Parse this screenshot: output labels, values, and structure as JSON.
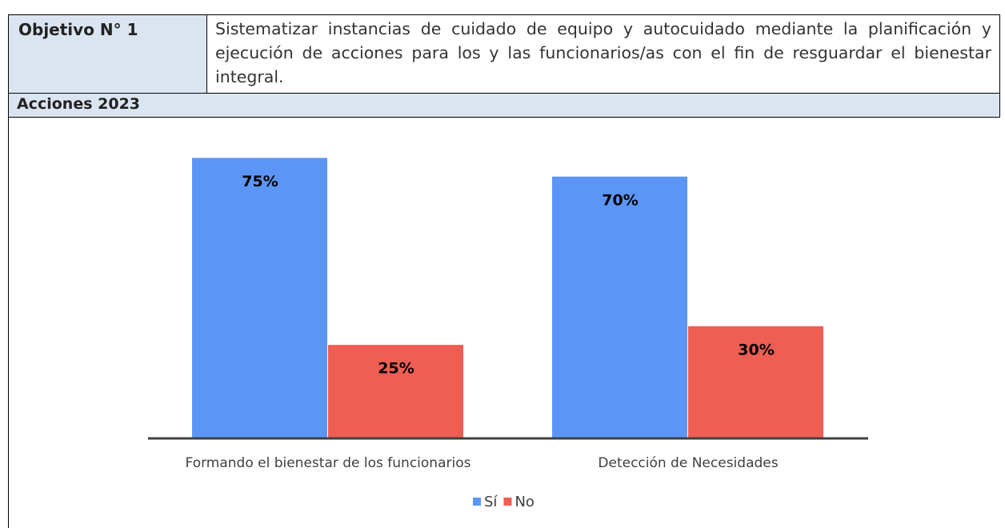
{
  "table": {
    "rows": [
      [
        "Objetivo N° 1",
        "Sistematizar instancias de cuidado de equipo y autocuidado mediante la planificación y ejecución de acciones para los y las funcionarios/as con el fin de resguardar el bienestar integral."
      ],
      [
        "Acciones 2023"
      ]
    ]
  },
  "chart_data": {
    "type": "bar",
    "categories": [
      "Formando el bienestar de los funcionarios",
      "Detección de Necesidades"
    ],
    "series": [
      {
        "name": "Sí",
        "color": "#5b96f7",
        "values": [
          75,
          70
        ],
        "value_labels": [
          "75%",
          "70%"
        ]
      },
      {
        "name": "No",
        "color": "#ef5e52",
        "values": [
          25,
          30
        ],
        "value_labels": [
          "25%",
          "30%"
        ]
      }
    ],
    "ylim": [
      0,
      80
    ],
    "legend": "bottom"
  }
}
